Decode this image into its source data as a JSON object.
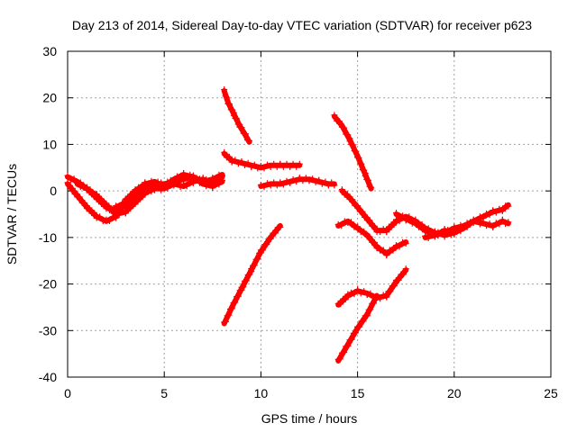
{
  "chart_data": {
    "type": "scatter",
    "title": "Day 213 of 2014, Sidereal Day-to-day VTEC variation (SDTVAR) for receiver p623",
    "xlabel": "GPS time / hours",
    "ylabel": "SDTVAR / TECUs",
    "xlim": [
      0,
      25
    ],
    "ylim": [
      -40,
      30
    ],
    "xticks": [
      0,
      5,
      10,
      15,
      20,
      25
    ],
    "yticks": [
      -40,
      -30,
      -20,
      -10,
      0,
      10,
      20,
      30
    ],
    "xtick_labels": [
      "0",
      "5",
      "10",
      "15",
      "20",
      "25"
    ],
    "ytick_labels": [
      "-40",
      "-30",
      "-20",
      "-10",
      "0",
      "10",
      "20",
      "30"
    ],
    "grid": true,
    "color": "#ff0000",
    "marker": "plus",
    "series": [
      {
        "x": [
          0.0,
          0.5,
          1.0,
          1.5,
          2.0,
          2.5,
          3.0,
          3.5
        ],
        "y": [
          3.0,
          2.0,
          0.5,
          -1.5,
          -3.5,
          -4.5,
          -3.0,
          -1.5
        ]
      },
      {
        "x": [
          0.0,
          0.5,
          1.0,
          1.5,
          2.0,
          2.5
        ],
        "y": [
          1.5,
          -1.0,
          -3.5,
          -5.5,
          -6.5,
          -5.5
        ]
      },
      {
        "x": [
          0.5,
          1.0,
          1.5,
          2.0,
          2.5,
          3.0,
          3.5,
          4.0,
          4.5
        ],
        "y": [
          1.5,
          0.5,
          -1.0,
          -3.0,
          -5.0,
          -4.5,
          -2.5,
          -0.5,
          0.5
        ]
      },
      {
        "x": [
          2.5,
          3.0,
          3.5,
          4.0,
          4.5,
          5.0,
          5.5,
          6.0,
          6.5,
          7.0,
          7.5,
          8.0
        ],
        "y": [
          -3.5,
          -2.5,
          -1.0,
          0.5,
          1.5,
          1.5,
          2.0,
          2.5,
          3.0,
          2.0,
          2.5,
          3.5
        ]
      },
      {
        "x": [
          3.0,
          3.5,
          4.0,
          4.5,
          5.0,
          5.5,
          6.0,
          6.5,
          7.0,
          7.5,
          8.0
        ],
        "y": [
          -2.0,
          0.0,
          1.5,
          2.0,
          1.0,
          2.5,
          3.5,
          3.0,
          1.5,
          1.0,
          2.0
        ]
      },
      {
        "x": [
          4.0,
          4.5,
          5.0,
          5.5,
          6.0,
          6.5,
          7.0,
          7.5,
          8.0
        ],
        "y": [
          0.0,
          0.5,
          0.5,
          1.5,
          1.0,
          2.0,
          2.5,
          1.5,
          3.0
        ]
      },
      {
        "x": [
          8.1,
          8.3,
          8.6,
          8.9,
          9.2,
          9.4
        ],
        "y": [
          21.5,
          19.0,
          16.5,
          14.0,
          12.0,
          10.5
        ]
      },
      {
        "x": [
          8.1,
          8.5,
          9.0,
          9.5,
          10.0,
          10.5,
          11.0,
          11.5,
          12.0
        ],
        "y": [
          8.0,
          6.5,
          6.0,
          5.5,
          5.0,
          5.5,
          5.5,
          5.5,
          5.5
        ]
      },
      {
        "x": [
          10.0,
          10.5,
          11.0,
          11.5,
          12.0,
          12.5,
          13.0,
          13.5,
          13.8
        ],
        "y": [
          1.0,
          1.5,
          1.5,
          2.0,
          2.5,
          2.5,
          2.0,
          1.5,
          1.5
        ]
      },
      {
        "x": [
          8.1,
          8.5,
          9.0,
          9.5,
          10.0,
          10.5,
          11.0
        ],
        "y": [
          -28.5,
          -25.0,
          -21.0,
          -17.0,
          -13.0,
          -10.0,
          -7.5
        ]
      },
      {
        "x": [
          13.8,
          14.2,
          14.6,
          15.0,
          15.4,
          15.7
        ],
        "y": [
          16.0,
          14.0,
          11.0,
          7.5,
          3.5,
          0.5
        ]
      },
      {
        "x": [
          14.2,
          14.6,
          15.0,
          15.5,
          16.0,
          16.5,
          17.0,
          17.5,
          18.0,
          18.5,
          19.0,
          19.5,
          20.0
        ],
        "y": [
          0.0,
          -1.5,
          -3.5,
          -6.0,
          -8.5,
          -8.5,
          -6.5,
          -5.5,
          -6.5,
          -8.0,
          -9.0,
          -9.5,
          -9.0
        ]
      },
      {
        "x": [
          14.0,
          14.5,
          15.0,
          15.5,
          16.0,
          16.5,
          17.0,
          17.5
        ],
        "y": [
          -7.5,
          -6.5,
          -8.0,
          -9.5,
          -12.0,
          -13.5,
          -12.0,
          -11.0
        ]
      },
      {
        "x": [
          17.0,
          17.5,
          18.0,
          18.5,
          19.0,
          19.5,
          20.0,
          20.5,
          21.0,
          21.5,
          22.0,
          22.5,
          22.8
        ],
        "y": [
          -5.0,
          -6.0,
          -7.0,
          -8.5,
          -9.5,
          -9.0,
          -8.0,
          -7.5,
          -6.5,
          -5.5,
          -4.5,
          -4.0,
          -3.0
        ]
      },
      {
        "x": [
          18.5,
          19.0,
          19.5,
          20.0,
          20.5,
          21.0,
          21.5,
          22.0,
          22.5,
          22.8
        ],
        "y": [
          -10.0,
          -9.5,
          -8.5,
          -9.0,
          -8.0,
          -6.5,
          -7.0,
          -7.5,
          -6.5,
          -7.0
        ]
      },
      {
        "x": [
          14.0,
          14.5,
          15.0,
          15.5,
          16.0,
          16.5,
          17.0,
          17.5
        ],
        "y": [
          -24.5,
          -22.5,
          -21.5,
          -22.0,
          -23.0,
          -22.5,
          -19.5,
          -17.0
        ]
      },
      {
        "x": [
          14.0,
          14.5,
          15.0,
          15.5,
          16.0
        ],
        "y": [
          -36.5,
          -33.0,
          -29.5,
          -26.5,
          -22.5
        ]
      }
    ]
  }
}
